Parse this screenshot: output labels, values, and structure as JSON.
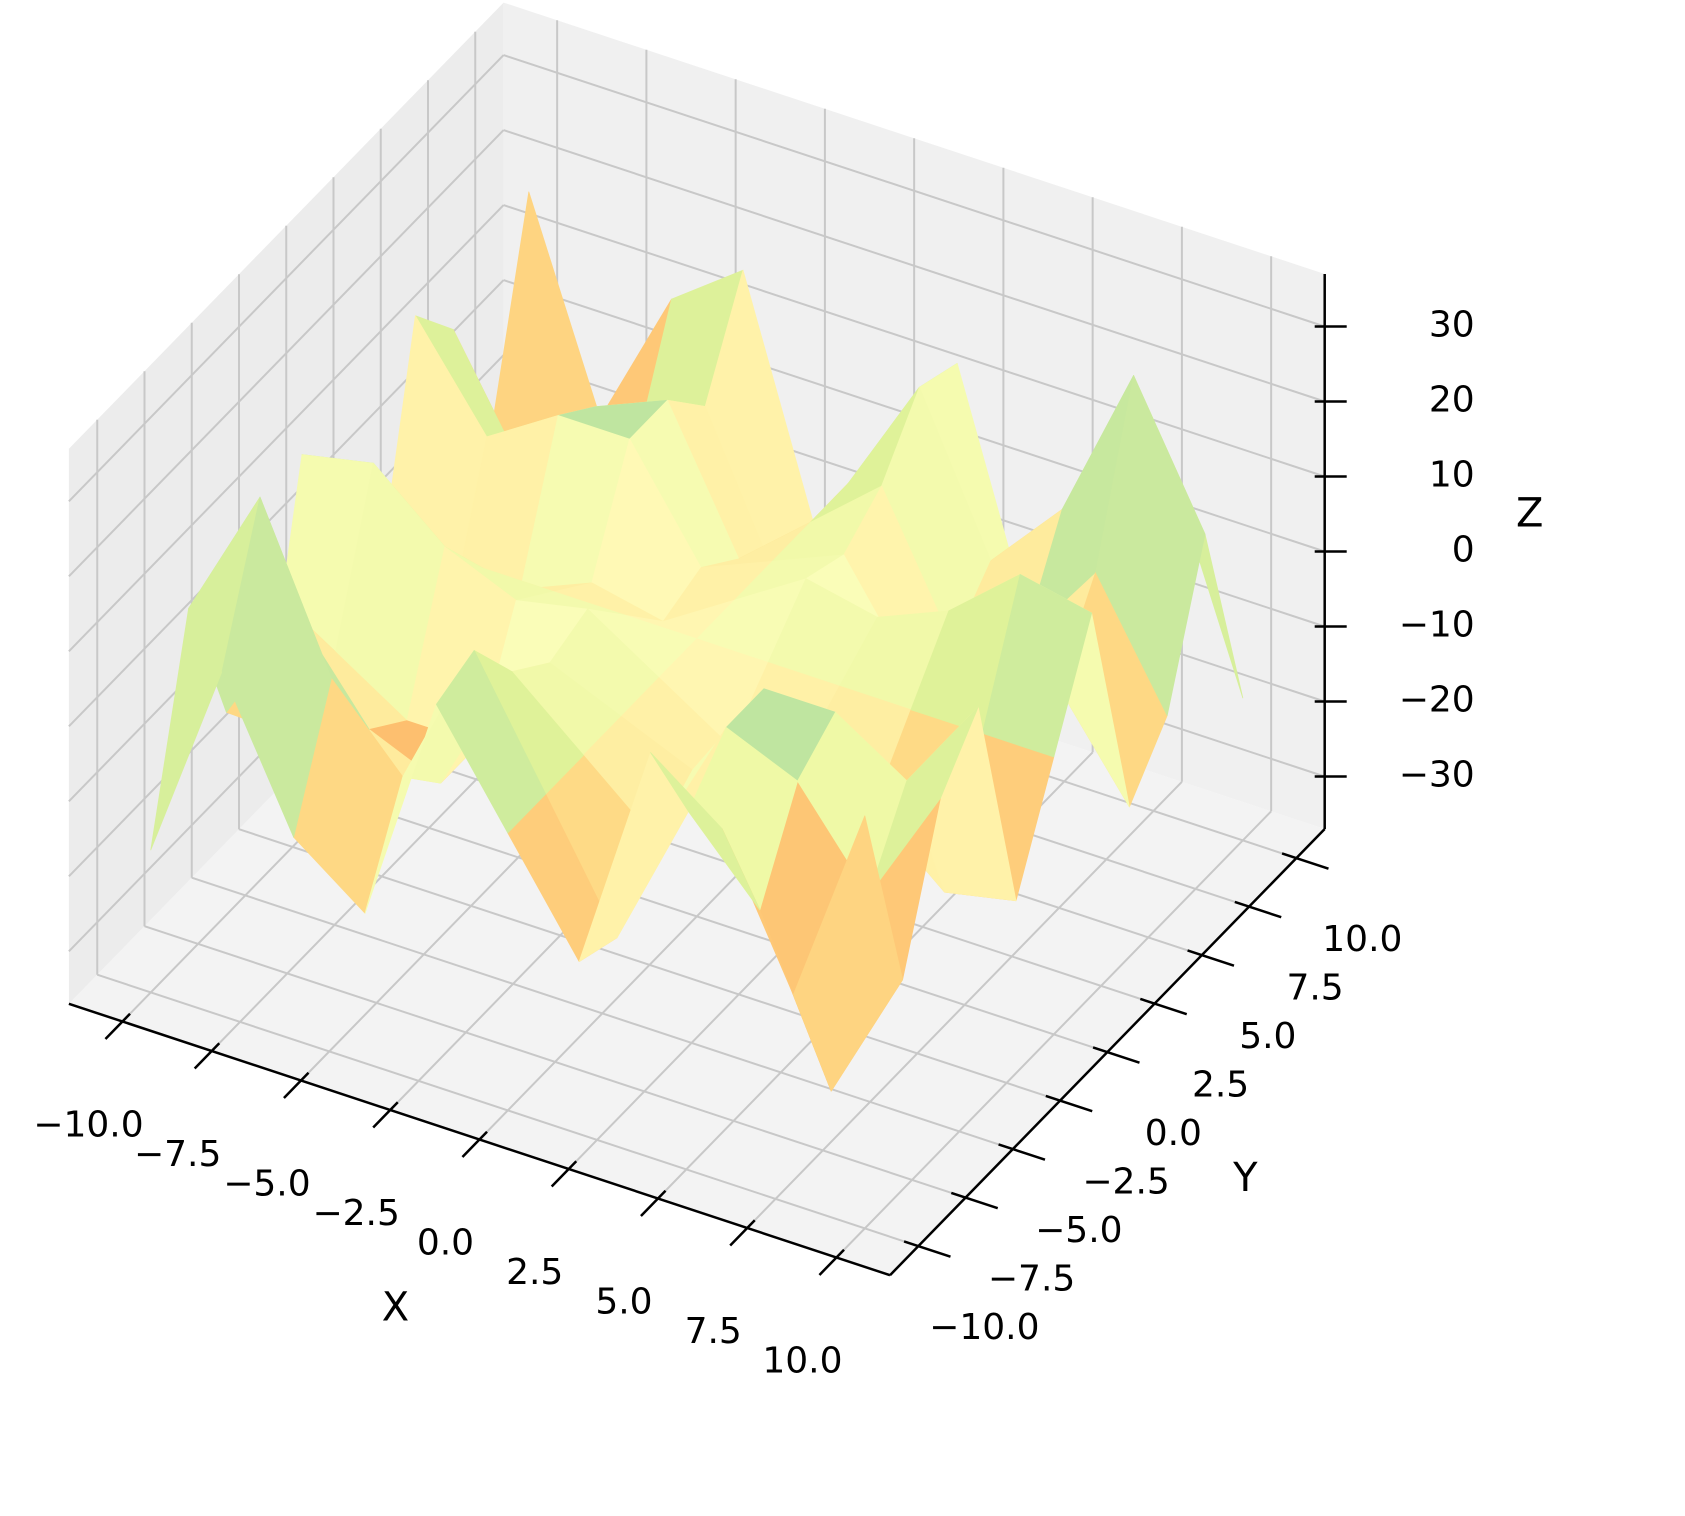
{
  "chart_data": {
    "type": "surface",
    "xlabel": "X",
    "ylabel": "Y",
    "zlabel": "Z",
    "x": [
      -10,
      -8,
      -6,
      -4,
      -2,
      0,
      2,
      4,
      6,
      8,
      10
    ],
    "y": [
      -10,
      -8,
      -6,
      -4,
      -2,
      0,
      2,
      4,
      6,
      8,
      10
    ],
    "z": [
      [
        -18,
        9,
        -10,
        -17,
        14,
        0,
        -14,
        17,
        10,
        -9,
        18
      ],
      [
        9,
        27,
        6,
        -4,
        16,
        0,
        -16,
        4,
        -6,
        -27,
        -9
      ],
      [
        -10,
        6,
        -6,
        -10,
        8,
        0,
        -8,
        10,
        6,
        -6,
        10
      ],
      [
        -17,
        -4,
        -10,
        -10,
        4,
        0,
        -4,
        10,
        10,
        4,
        17
      ],
      [
        14,
        16,
        8,
        4,
        6,
        0,
        -6,
        -4,
        -8,
        -16,
        -14
      ],
      [
        0,
        0,
        0,
        0,
        0,
        0,
        0,
        0,
        0,
        0,
        0
      ],
      [
        -14,
        -16,
        -8,
        -4,
        -6,
        0,
        6,
        4,
        8,
        16,
        14
      ],
      [
        17,
        4,
        10,
        10,
        -4,
        0,
        4,
        -10,
        -10,
        -4,
        -17
      ],
      [
        10,
        -6,
        6,
        10,
        -8,
        0,
        8,
        -10,
        -6,
        6,
        -10
      ],
      [
        -9,
        -27,
        -6,
        4,
        -16,
        0,
        16,
        -4,
        6,
        27,
        9
      ],
      [
        18,
        -9,
        10,
        17,
        -14,
        0,
        14,
        -17,
        -10,
        9,
        -18
      ]
    ],
    "xlim": [
      -11.5,
      11.5
    ],
    "ylim": [
      -11.5,
      11.5
    ],
    "zlim": [
      -37,
      37
    ],
    "xticks": [
      {
        "value": -10,
        "label": "−10.0"
      },
      {
        "value": -7.5,
        "label": "−7.5"
      },
      {
        "value": -5,
        "label": "−5.0"
      },
      {
        "value": -2.5,
        "label": "−2.5"
      },
      {
        "value": 0,
        "label": "0.0"
      },
      2.5,
      {
        "value": 5,
        "label": "5.0"
      },
      7.5,
      {
        "value": 10,
        "label": "10.0"
      }
    ],
    "yticks": [
      {
        "value": -10,
        "label": "−10.0"
      },
      {
        "value": -7.5,
        "label": "−7.5"
      },
      {
        "value": -5,
        "label": "−5.0"
      },
      {
        "value": -2.5,
        "label": "−2.5"
      },
      {
        "value": 0,
        "label": "0.0"
      },
      2.5,
      {
        "value": 5,
        "label": "5.0"
      },
      7.5,
      {
        "value": 10,
        "label": "10.0"
      }
    ],
    "zticks": [
      {
        "value": -30,
        "label": "−30"
      },
      {
        "value": -20,
        "label": "−20"
      },
      {
        "value": -10,
        "label": "−10"
      },
      0,
      10,
      20,
      30
    ],
    "colormap": [
      "#9e0142",
      "#d53e4f",
      "#f46d43",
      "#fdae61",
      "#fee08b",
      "#ffffbf",
      "#e6f598",
      "#abdda4",
      "#66c2a5",
      "#3288bd",
      "#5e4fa2"
    ],
    "grid": true
  }
}
